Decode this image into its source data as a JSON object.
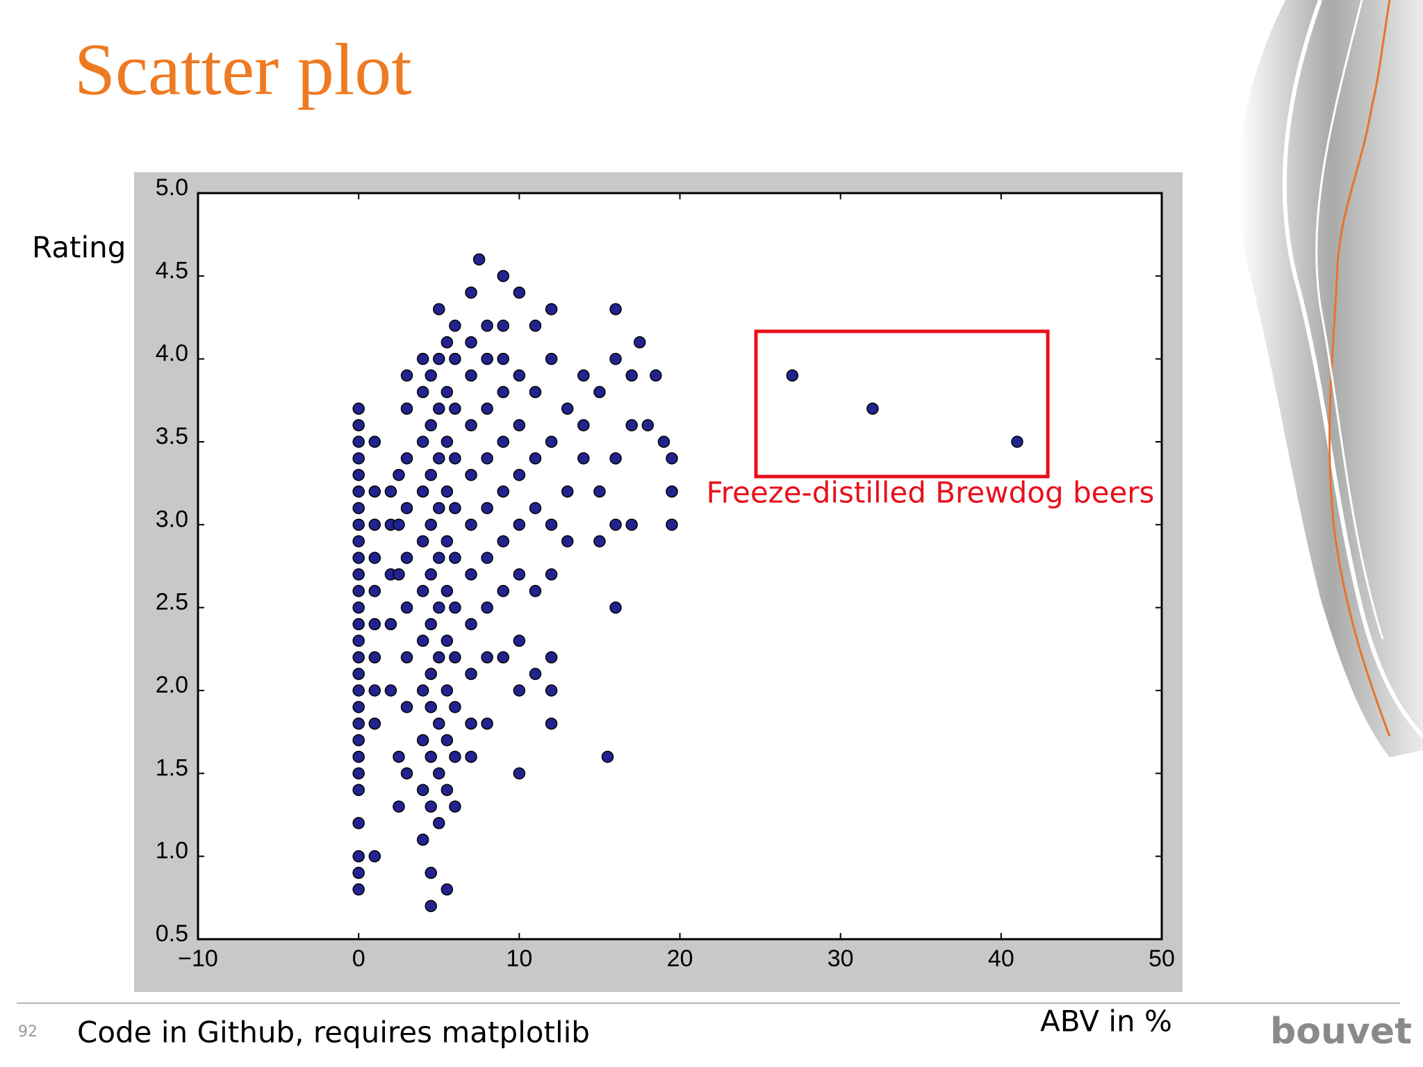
{
  "title": "Scatter plot",
  "footer": {
    "page_number": "92",
    "text": "Code in Github, requires matplotlib",
    "logo": "bouvet"
  },
  "chart_data": {
    "type": "scatter",
    "ylabel": "Rating",
    "xlabel": "ABV in %",
    "annotation": "Freeze-distilled Brewdog beers",
    "color": "#23238f",
    "xlim": [
      -10,
      50
    ],
    "ylim": [
      0.5,
      5.0
    ],
    "xticks": [
      {
        "value": -10,
        "label": "−10"
      },
      0,
      10,
      20,
      30,
      40,
      50
    ],
    "yticks": [
      0.5,
      {
        "value": 1,
        "label": "1.0"
      },
      1.5,
      {
        "value": 2,
        "label": "2.0"
      },
      2.5,
      {
        "value": 3,
        "label": "3.0"
      },
      3.5,
      {
        "value": 4,
        "label": "4.0"
      },
      4.5,
      {
        "value": 5,
        "label": "5.0"
      }
    ],
    "x": [
      0,
      0,
      0,
      0,
      0,
      0,
      0,
      0,
      0,
      0,
      0,
      0,
      0,
      0,
      0,
      0,
      0,
      0,
      0,
      0,
      0,
      0,
      0,
      0,
      0,
      0,
      0,
      0,
      1,
      1,
      1,
      1,
      1,
      1,
      1,
      1,
      1,
      1,
      2,
      2,
      2,
      2,
      2,
      2.5,
      2.5,
      2.5,
      2.5,
      2.5,
      3,
      3,
      3,
      3,
      3,
      3,
      3,
      3,
      3,
      4,
      4,
      4,
      4,
      4,
      4,
      4,
      4,
      4,
      4,
      4,
      4.5,
      4.5,
      4.5,
      4.5,
      4.5,
      4.5,
      4.5,
      4.5,
      4.5,
      4.5,
      4.5,
      4.5,
      5,
      5,
      5,
      5,
      5,
      5,
      5,
      5,
      5,
      5,
      5,
      5.5,
      5.5,
      5.5,
      5.5,
      5.5,
      5.5,
      5.5,
      5.5,
      5.5,
      5.5,
      5.5,
      6,
      6,
      6,
      6,
      6,
      6,
      6,
      6,
      6,
      6,
      6,
      7,
      7,
      7,
      7,
      7,
      7,
      7,
      7,
      7,
      7,
      7,
      7.5,
      8,
      8,
      8,
      8,
      8,
      8,
      8,
      8,
      8,
      9,
      9,
      9,
      9,
      9,
      9,
      9,
      9,
      9,
      10,
      10,
      10,
      10,
      10,
      10,
      10,
      10,
      10,
      11,
      11,
      11,
      11,
      11,
      11,
      12,
      12,
      12,
      12,
      12,
      12,
      12,
      12,
      13,
      13,
      13,
      14,
      14,
      14,
      15,
      15,
      15,
      15.5,
      16,
      16,
      16,
      16,
      16,
      17,
      17,
      17,
      17.5,
      18,
      18.5,
      19,
      19.5,
      19.5,
      19.5,
      27,
      32,
      41
    ],
    "values": [
      0.8,
      0.9,
      1.0,
      1.2,
      1.4,
      1.5,
      1.6,
      1.7,
      1.8,
      1.9,
      2.0,
      2.1,
      2.2,
      2.3,
      2.4,
      2.5,
      2.6,
      2.7,
      2.8,
      2.9,
      3.0,
      3.1,
      3.2,
      3.3,
      3.4,
      3.5,
      3.6,
      3.7,
      1.0,
      1.8,
      2.0,
      2.2,
      2.4,
      2.6,
      2.8,
      3.0,
      3.2,
      3.5,
      2.0,
      2.4,
      2.7,
      3.0,
      3.2,
      1.3,
      1.6,
      2.7,
      3.0,
      3.3,
      1.5,
      1.9,
      2.2,
      2.5,
      2.8,
      3.1,
      3.4,
      3.7,
      3.9,
      1.1,
      1.4,
      1.7,
      2.0,
      2.3,
      2.6,
      2.9,
      3.2,
      3.5,
      3.8,
      4.0,
      0.7,
      0.9,
      1.3,
      1.6,
      1.9,
      2.1,
      2.4,
      2.7,
      3.0,
      3.3,
      3.6,
      3.9,
      1.2,
      1.5,
      1.8,
      2.2,
      2.5,
      2.8,
      3.1,
      3.4,
      3.7,
      4.0,
      4.3,
      0.8,
      1.4,
      1.7,
      2.0,
      2.3,
      2.6,
      2.9,
      3.2,
      3.5,
      3.8,
      4.1,
      1.3,
      1.6,
      1.9,
      2.2,
      2.5,
      2.8,
      3.1,
      3.4,
      3.7,
      4.0,
      4.2,
      1.6,
      1.8,
      2.1,
      2.4,
      2.7,
      3.0,
      3.3,
      3.6,
      3.9,
      4.1,
      4.4,
      4.6,
      1.8,
      2.2,
      2.5,
      2.8,
      3.1,
      3.4,
      3.7,
      4.0,
      4.2,
      2.2,
      2.6,
      2.9,
      3.2,
      3.5,
      3.8,
      4.0,
      4.2,
      4.5,
      1.5,
      2.0,
      2.3,
      2.7,
      3.0,
      3.3,
      3.6,
      3.9,
      4.4,
      2.1,
      2.6,
      3.1,
      3.4,
      3.8,
      4.2,
      1.8,
      2.0,
      2.2,
      2.7,
      3.0,
      3.5,
      4.0,
      4.3,
      2.9,
      3.2,
      3.7,
      3.4,
      3.6,
      3.9,
      2.9,
      3.2,
      3.8,
      1.6,
      2.5,
      3.0,
      3.4,
      4.0,
      4.3,
      3.0,
      3.6,
      3.9,
      4.1,
      3.6,
      3.9,
      3.5,
      3.0,
      3.2,
      3.4,
      3.9,
      3.7,
      3.5
    ]
  }
}
